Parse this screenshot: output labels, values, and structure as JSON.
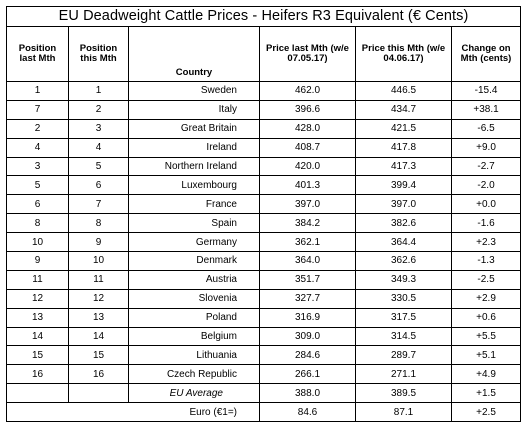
{
  "title": "EU Deadweight Cattle Prices - Heifers R3 Equivalent (€ Cents)",
  "headers": {
    "pos_last": "Position last Mth",
    "pos_this": "Position this Mth",
    "country": "Country",
    "price_last": "Price last Mth (w/e 07.05.17)",
    "price_this": "Price this Mth (w/e 04.06.17)",
    "change": "Change on Mth (cents)"
  },
  "rows": [
    {
      "pos_last": "1",
      "pos_this": "1",
      "country": "Sweden",
      "price_last": "462.0",
      "price_this": "446.5",
      "change": "-15.4"
    },
    {
      "pos_last": "7",
      "pos_this": "2",
      "country": "Italy",
      "price_last": "396.6",
      "price_this": "434.7",
      "change": "+38.1"
    },
    {
      "pos_last": "2",
      "pos_this": "3",
      "country": "Great Britain",
      "price_last": "428.0",
      "price_this": "421.5",
      "change": "-6.5"
    },
    {
      "pos_last": "4",
      "pos_this": "4",
      "country": "Ireland",
      "price_last": "408.7",
      "price_this": "417.8",
      "change": "+9.0"
    },
    {
      "pos_last": "3",
      "pos_this": "5",
      "country": "Northern Ireland",
      "price_last": "420.0",
      "price_this": "417.3",
      "change": "-2.7"
    },
    {
      "pos_last": "5",
      "pos_this": "6",
      "country": "Luxembourg",
      "price_last": "401.3",
      "price_this": "399.4",
      "change": "-2.0"
    },
    {
      "pos_last": "6",
      "pos_this": "7",
      "country": "France",
      "price_last": "397.0",
      "price_this": "397.0",
      "change": "+0.0"
    },
    {
      "pos_last": "8",
      "pos_this": "8",
      "country": "Spain",
      "price_last": "384.2",
      "price_this": "382.6",
      "change": "-1.6"
    },
    {
      "pos_last": "10",
      "pos_this": "9",
      "country": "Germany",
      "price_last": "362.1",
      "price_this": "364.4",
      "change": "+2.3"
    },
    {
      "pos_last": "9",
      "pos_this": "10",
      "country": "Denmark",
      "price_last": "364.0",
      "price_this": "362.6",
      "change": "-1.3"
    },
    {
      "pos_last": "11",
      "pos_this": "11",
      "country": "Austria",
      "price_last": "351.7",
      "price_this": "349.3",
      "change": "-2.5"
    },
    {
      "pos_last": "12",
      "pos_this": "12",
      "country": "Slovenia",
      "price_last": "327.7",
      "price_this": "330.5",
      "change": "+2.9"
    },
    {
      "pos_last": "13",
      "pos_this": "13",
      "country": "Poland",
      "price_last": "316.9",
      "price_this": "317.5",
      "change": "+0.6"
    },
    {
      "pos_last": "14",
      "pos_this": "14",
      "country": "Belgium",
      "price_last": "309.0",
      "price_this": "314.5",
      "change": "+5.5"
    },
    {
      "pos_last": "15",
      "pos_this": "15",
      "country": "Lithuania",
      "price_last": "284.6",
      "price_this": "289.7",
      "change": "+5.1"
    },
    {
      "pos_last": "16",
      "pos_this": "16",
      "country": "Czech Republic",
      "price_last": "266.1",
      "price_this": "271.1",
      "change": "+4.9"
    }
  ],
  "eu_average": {
    "label": "EU Average",
    "price_last": "388.0",
    "price_this": "389.5",
    "change": "+1.5"
  },
  "euro": {
    "label": "Euro (€1=)",
    "price_last": "84.6",
    "price_this": "87.1",
    "change": "+2.5"
  }
}
